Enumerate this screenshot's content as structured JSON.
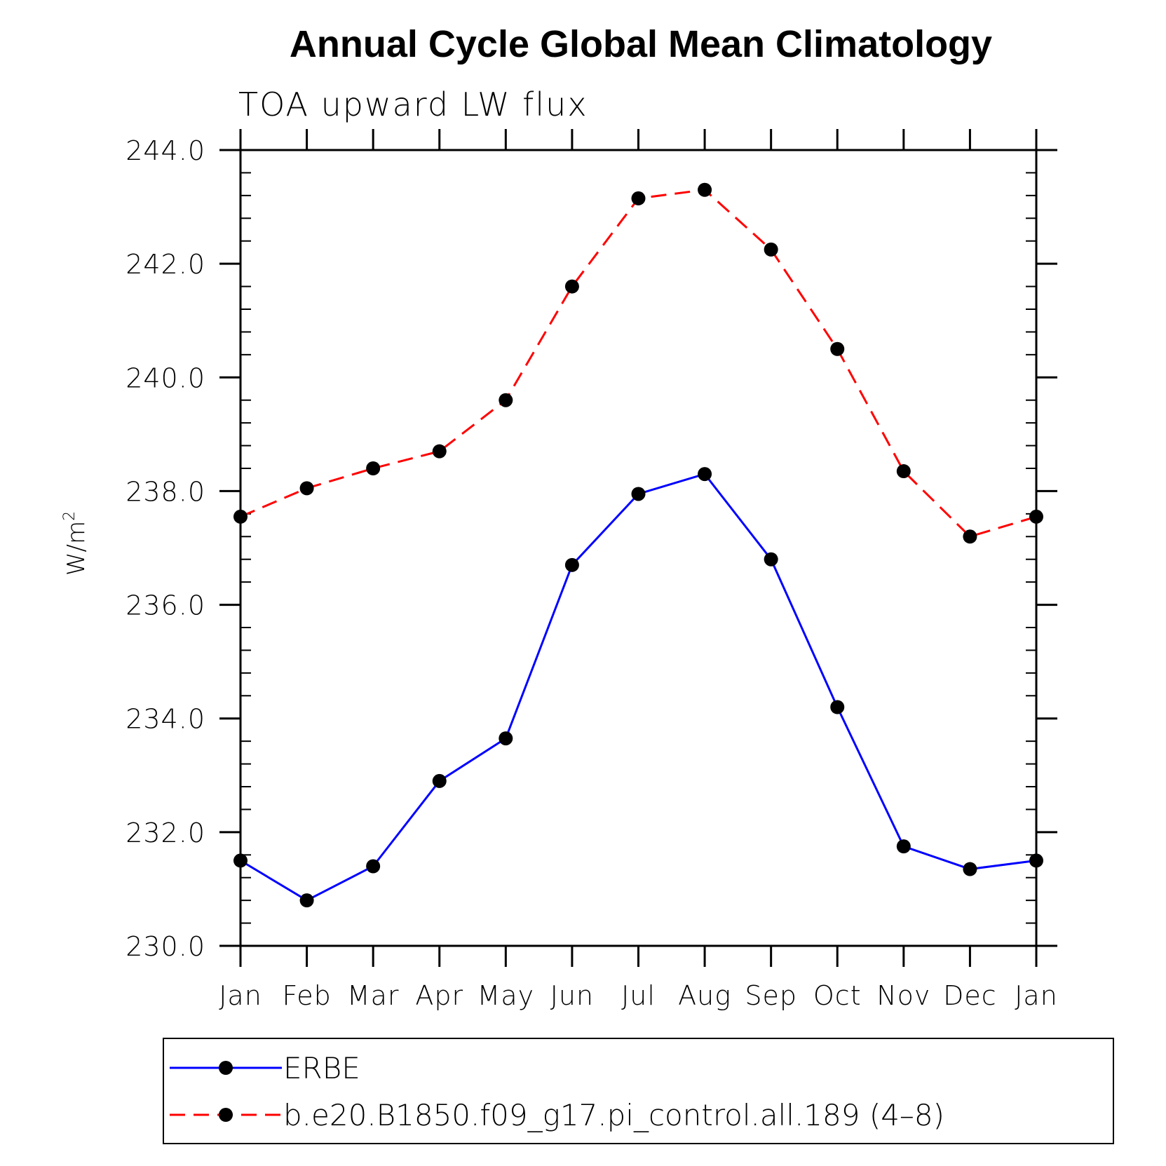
{
  "chart_data": {
    "type": "line",
    "title": "Annual Cycle Global Mean Climatology",
    "subtitle": "TOA upward LW flux",
    "ylabel_base": "W/m",
    "ylabel_sup": "2",
    "xlabel": "",
    "categories": [
      "Jan",
      "Feb",
      "Mar",
      "Apr",
      "May",
      "Jun",
      "Jul",
      "Aug",
      "Sep",
      "Oct",
      "Nov",
      "Dec",
      "Jan"
    ],
    "ylim": [
      230.0,
      244.0
    ],
    "yticks": [
      "230.0",
      "232.0",
      "234.0",
      "236.0",
      "238.0",
      "240.0",
      "242.0",
      "244.0"
    ],
    "grid": false,
    "legend_position": "bottom",
    "series": [
      {
        "name": "ERBE",
        "color": "#0000ff",
        "dash": "solid",
        "marker": "filled-circle",
        "values": [
          231.5,
          230.8,
          231.4,
          232.9,
          233.65,
          236.7,
          237.95,
          238.3,
          236.8,
          234.2,
          231.75,
          231.35,
          231.5
        ]
      },
      {
        "name": "b.e20.B1850.f09_g17.pi_control.all.189 (4–8)",
        "color": "#ff0000",
        "dash": "dashed",
        "marker": "filled-circle",
        "values": [
          237.55,
          238.05,
          238.4,
          238.7,
          239.6,
          241.6,
          243.15,
          243.3,
          242.25,
          240.5,
          238.35,
          237.2,
          237.55
        ]
      }
    ]
  }
}
